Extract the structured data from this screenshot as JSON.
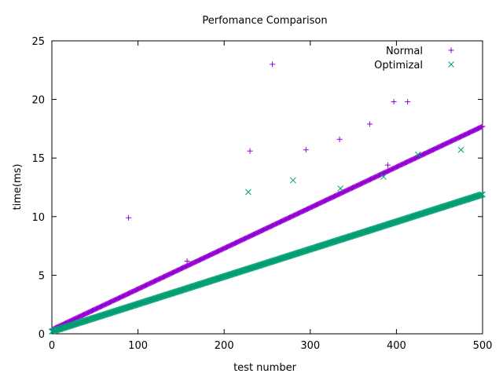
{
  "chart_data": {
    "type": "scatter",
    "title": "Perfomance Comparison",
    "xlabel": "test number",
    "ylabel": "time(ms)",
    "xlim": [
      0,
      500
    ],
    "ylim": [
      0,
      25
    ],
    "xticks": [
      0,
      100,
      200,
      300,
      400,
      500
    ],
    "yticks": [
      0,
      5,
      10,
      15,
      20,
      25
    ],
    "grid": false,
    "legend_position": "top-right",
    "series": [
      {
        "name": "Normal",
        "marker": "plus",
        "color": "#9400d3",
        "trend": {
          "x_range": [
            0,
            500
          ],
          "y_start": 0.35,
          "y_end": 17.7,
          "step": 1
        },
        "outliers": [
          {
            "x": 89,
            "y": 9.9
          },
          {
            "x": 157,
            "y": 6.2
          },
          {
            "x": 230,
            "y": 15.6
          },
          {
            "x": 256,
            "y": 23.0
          },
          {
            "x": 295,
            "y": 15.7
          },
          {
            "x": 334,
            "y": 16.6
          },
          {
            "x": 369,
            "y": 17.9
          },
          {
            "x": 390,
            "y": 14.4
          },
          {
            "x": 397,
            "y": 19.8
          },
          {
            "x": 413,
            "y": 19.8
          }
        ]
      },
      {
        "name": "Optimizal",
        "marker": "cross",
        "color": "#009e73",
        "trend": {
          "x_range": [
            0,
            500
          ],
          "y_start": 0.2,
          "y_end": 11.9,
          "step": 1
        },
        "outliers": [
          {
            "x": 228,
            "y": 12.1
          },
          {
            "x": 280,
            "y": 13.1
          },
          {
            "x": 335,
            "y": 12.4
          },
          {
            "x": 385,
            "y": 13.4
          },
          {
            "x": 425,
            "y": 15.3
          },
          {
            "x": 475,
            "y": 15.7
          }
        ]
      }
    ]
  }
}
